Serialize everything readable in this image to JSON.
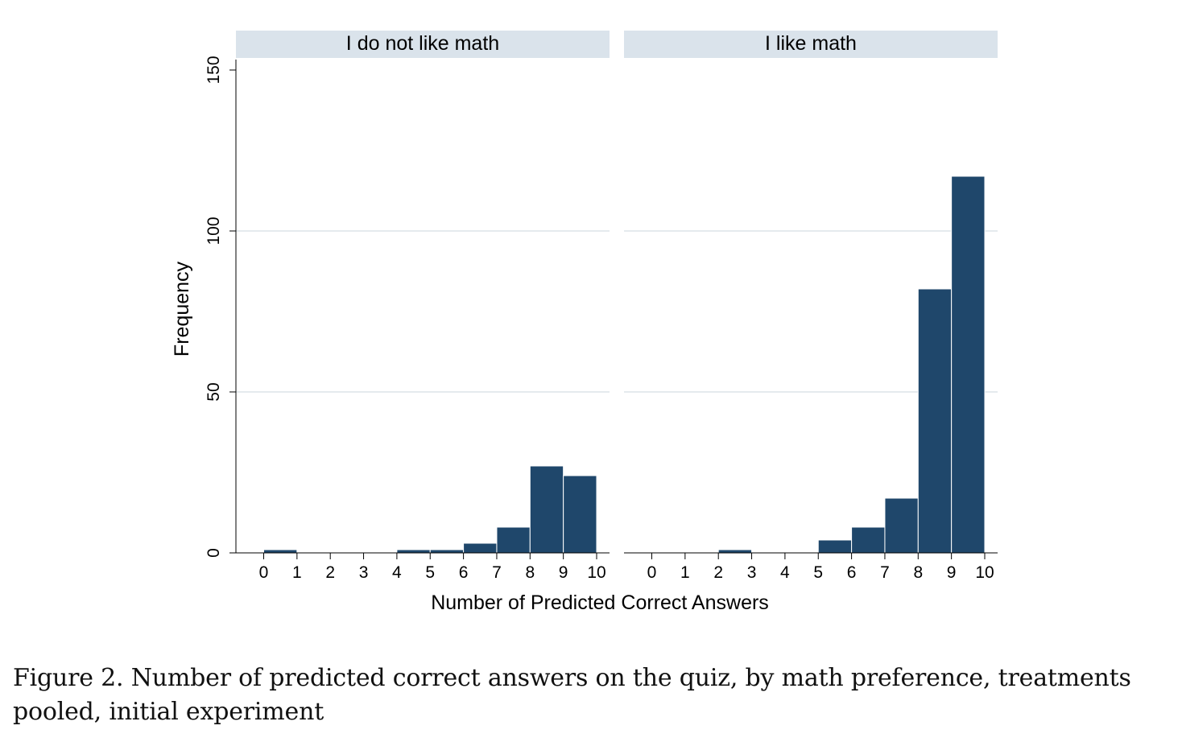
{
  "chart_data": {
    "type": "bar",
    "ylabel": "Frequency",
    "xlabel": "Number of Predicted Correct Answers",
    "ylim": [
      0,
      150
    ],
    "yticks": [
      0,
      50,
      100,
      150
    ],
    "xticks": [
      0,
      1,
      2,
      3,
      4,
      5,
      6,
      7,
      8,
      9,
      10
    ],
    "grid": true,
    "colors": {
      "bar": "#1f476b",
      "strip": "#dae3eb",
      "grid": "#e5eaee"
    },
    "panels": [
      {
        "name": "I do not like math",
        "bins": [
          {
            "x0": 0,
            "x1": 1,
            "value": 1
          },
          {
            "x0": 1,
            "x1": 2,
            "value": 0
          },
          {
            "x0": 2,
            "x1": 3,
            "value": 0
          },
          {
            "x0": 3,
            "x1": 4,
            "value": 0
          },
          {
            "x0": 4,
            "x1": 5,
            "value": 1
          },
          {
            "x0": 5,
            "x1": 6,
            "value": 1
          },
          {
            "x0": 6,
            "x1": 7,
            "value": 3
          },
          {
            "x0": 7,
            "x1": 8,
            "value": 8
          },
          {
            "x0": 8,
            "x1": 9,
            "value": 27
          },
          {
            "x0": 9,
            "x1": 10,
            "value": 24
          }
        ]
      },
      {
        "name": "I like math",
        "bins": [
          {
            "x0": 0,
            "x1": 1,
            "value": 0
          },
          {
            "x0": 1,
            "x1": 2,
            "value": 0
          },
          {
            "x0": 2,
            "x1": 3,
            "value": 1
          },
          {
            "x0": 3,
            "x1": 4,
            "value": 0
          },
          {
            "x0": 4,
            "x1": 5,
            "value": 0
          },
          {
            "x0": 5,
            "x1": 6,
            "value": 4
          },
          {
            "x0": 6,
            "x1": 7,
            "value": 8
          },
          {
            "x0": 7,
            "x1": 8,
            "value": 17
          },
          {
            "x0": 8,
            "x1": 9,
            "value": 82
          },
          {
            "x0": 9,
            "x1": 10,
            "value": 117
          }
        ]
      }
    ]
  },
  "caption": "Figure 2.  Number of predicted correct answers on the quiz, by math preference, treatments pooled, initial experiment"
}
